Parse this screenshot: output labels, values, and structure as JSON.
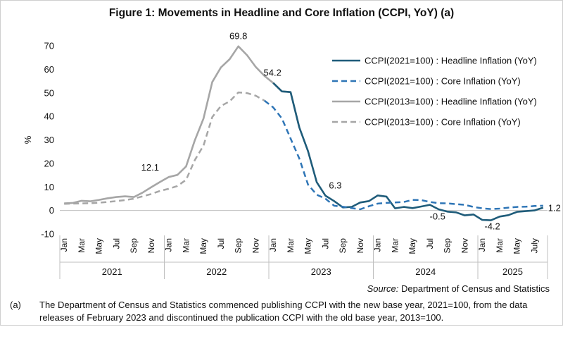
{
  "chart_data": {
    "type": "line",
    "title": "Figure 1: Movements in Headline and Core Inflation (CCPI, YoY) (a)",
    "ylabel": "%",
    "ylim": [
      -10,
      70
    ],
    "yticks": [
      -10,
      0,
      10,
      20,
      30,
      40,
      50,
      60,
      70
    ],
    "x_tick_labels": [
      "Jan",
      "Mar",
      "May",
      "Jul",
      "Sep",
      "Nov",
      "Jan",
      "Mar",
      "May",
      "Jul",
      "Sep",
      "Nov",
      "Jan",
      "Mar",
      "May",
      "Jul",
      "Sep",
      "Nov",
      "Jan",
      "Mar",
      "May",
      "Jul",
      "Sep",
      "Nov",
      "Jan",
      "Mar",
      "May",
      "July"
    ],
    "years": [
      "2021",
      "2022",
      "2023",
      "2024",
      "2025"
    ],
    "months_count": 56,
    "grid": false,
    "legend_position": "right",
    "series": [
      {
        "name": "CCPI(2013=100) : Headline Inflation (YoY)",
        "color": "#a6a6a6",
        "dash": "solid",
        "start_index": 0,
        "values": [
          3.0,
          3.2,
          4.1,
          3.9,
          4.5,
          5.2,
          5.7,
          6.0,
          5.7,
          7.6,
          9.9,
          12.1,
          14.2,
          15.1,
          18.7,
          29.8,
          39.1,
          54.6,
          60.8,
          64.3,
          69.8,
          66.0,
          61.0,
          57.2,
          54.2,
          50.6,
          50.3,
          35.3
        ]
      },
      {
        "name": "CCPI(2013=100) : Core Inflation (YoY)",
        "color": "#a6a6a6",
        "dash": "dashed",
        "start_index": 0,
        "values": [
          2.8,
          2.9,
          3.0,
          3.1,
          3.3,
          3.6,
          4.0,
          4.4,
          5.0,
          6.0,
          7.0,
          8.3,
          9.2,
          10.4,
          13.0,
          21.4,
          27.6,
          39.7,
          44.4,
          46.4,
          50.2,
          49.9,
          48.8,
          46.7
        ]
      },
      {
        "name": "CCPI(2021=100) : Headline Inflation (YoY)",
        "color": "#1f5c7a",
        "dash": "solid",
        "start_index": 24,
        "values": [
          54.2,
          50.6,
          50.3,
          35.3,
          25.2,
          12.0,
          6.3,
          4.0,
          1.3,
          1.5,
          3.4,
          4.0,
          6.4,
          5.9,
          0.9,
          1.5,
          1.0,
          1.7,
          2.4,
          0.5,
          -0.5,
          -0.8,
          -2.1,
          -1.7,
          -4.0,
          -4.2,
          -2.6,
          -2.0,
          -0.6,
          -0.3,
          0.0,
          1.2
        ]
      },
      {
        "name": "CCPI(2021=100) : Core Inflation (YoY)",
        "color": "#2e75b6",
        "dash": "dashed",
        "start_index": 23,
        "values": [
          46.7,
          43.8,
          39.1,
          30.6,
          22.1,
          11.0,
          6.7,
          5.0,
          2.0,
          1.6,
          1.0,
          0.5,
          1.8,
          2.9,
          3.2,
          3.4,
          3.6,
          4.5,
          4.4,
          3.6,
          3.1,
          3.0,
          2.7,
          2.4,
          1.5,
          0.9,
          0.6,
          0.8,
          1.2,
          1.5,
          1.6,
          1.9,
          2.0
        ]
      }
    ],
    "annotations": [
      {
        "text": "12.1",
        "series": 0,
        "index": 11
      },
      {
        "text": "69.8",
        "series": 0,
        "index": 20
      },
      {
        "text": "54.2",
        "series": 2,
        "index": 24
      },
      {
        "text": "6.3",
        "series": 2,
        "index": 30
      },
      {
        "text": "-0.5",
        "series": 2,
        "index": 44
      },
      {
        "text": "-4.2",
        "series": 2,
        "index": 49
      },
      {
        "text": "1.2",
        "series": 2,
        "index": 55
      }
    ],
    "legend_order": [
      2,
      3,
      0,
      1
    ]
  },
  "source": {
    "label": "Source:",
    "text": " Department of Census and Statistics"
  },
  "note": {
    "label": "(a)",
    "text": "The Department of Census and Statistics commenced publishing CCPI with the new base year, 2021=100, from the data releases of February 2023 and discontinued the publication CCPI with the old base year, 2013=100."
  }
}
